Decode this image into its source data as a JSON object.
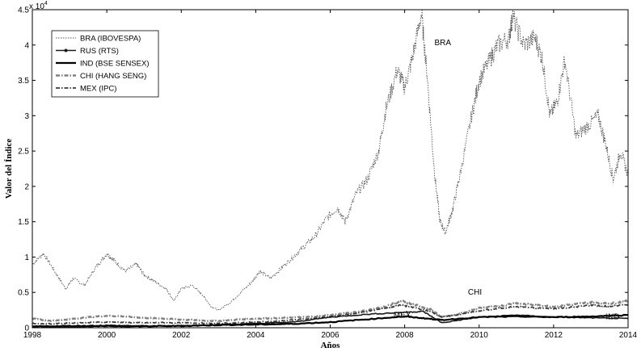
{
  "chart_data": {
    "type": "line",
    "title": "",
    "xlabel": "Años",
    "ylabel": "Valor del Índice",
    "y_exponent_label": "x 10",
    "y_exponent": "4",
    "xlim": [
      1998,
      2014
    ],
    "ylim": [
      0,
      45000
    ],
    "x_ticks": [
      1998,
      2000,
      2002,
      2004,
      2006,
      2008,
      2010,
      2012,
      2014
    ],
    "y_ticks": [
      0,
      0.5,
      1,
      1.5,
      2,
      2.5,
      3,
      3.5,
      4,
      4.5
    ],
    "grid": false,
    "legend_position": "top-left",
    "series": [
      {
        "name": "BRA (IBOVESPA)",
        "style": "dotted",
        "color": "#555555",
        "x": [
          1998.0,
          1998.3,
          1998.6,
          1998.9,
          1999.1,
          1999.4,
          1999.7,
          2000.0,
          2000.2,
          2000.5,
          2000.8,
          2001.0,
          2001.3,
          2001.6,
          2001.8,
          2002.0,
          2002.3,
          2002.6,
          2002.8,
          2003.0,
          2003.3,
          2003.6,
          2003.9,
          2004.1,
          2004.4,
          2004.7,
          2005.0,
          2005.3,
          2005.6,
          2005.9,
          2006.2,
          2006.4,
          2006.7,
          2007.0,
          2007.3,
          2007.5,
          2007.8,
          2008.0,
          2008.2,
          2008.45,
          2008.6,
          2008.8,
          2008.95,
          2009.1,
          2009.3,
          2009.5,
          2009.8,
          2010.0,
          2010.3,
          2010.5,
          2010.8,
          2010.9,
          2011.2,
          2011.5,
          2011.7,
          2011.9,
          2012.1,
          2012.3,
          2012.6,
          2012.9,
          2013.2,
          2013.4,
          2013.6,
          2013.8,
          2014.0
        ],
        "y": [
          9000,
          10500,
          8000,
          5500,
          7000,
          6000,
          8500,
          10500,
          9500,
          8000,
          9000,
          7500,
          6500,
          5500,
          3800,
          5500,
          6000,
          4500,
          3000,
          2500,
          3500,
          5000,
          6500,
          8000,
          7000,
          8500,
          10000,
          11500,
          13000,
          15500,
          17000,
          15000,
          19000,
          21000,
          25000,
          31000,
          36500,
          34000,
          38000,
          44500,
          36000,
          22000,
          15000,
          13500,
          17000,
          22000,
          30000,
          35000,
          38000,
          40000,
          41000,
          44000,
          40000,
          41000,
          38000,
          30000,
          32000,
          38000,
          27000,
          28500,
          30000,
          26000,
          21000,
          25000,
          21500
        ]
      },
      {
        "name": "RUS (RTS)",
        "style": "solid-dots",
        "color": "#1a1a1a",
        "x": [
          1998.0,
          1999.0,
          2000.0,
          2001.0,
          2002.0,
          2003.0,
          2004.0,
          2005.0,
          2006.0,
          2007.0,
          2008.0,
          2008.5,
          2009.0,
          2010.0,
          2011.0,
          2012.0,
          2013.0,
          2014.0
        ],
        "y": [
          150,
          100,
          200,
          180,
          300,
          450,
          600,
          800,
          1500,
          1900,
          2200,
          2300,
          700,
          1500,
          1800,
          1500,
          1400,
          1300
        ]
      },
      {
        "name": "IND (BSE SENSEX)",
        "style": "solid-thick",
        "color": "#000000",
        "x": [
          1998.0,
          1999.0,
          2000.0,
          2001.0,
          2002.0,
          2003.0,
          2004.0,
          2005.0,
          2006.0,
          2007.0,
          2008.0,
          2008.6,
          2009.0,
          2010.0,
          2011.0,
          2012.0,
          2013.0,
          2014.0
        ],
        "y": [
          180,
          250,
          300,
          230,
          250,
          380,
          450,
          550,
          800,
          1200,
          1600,
          1300,
          1100,
          1500,
          1600,
          1500,
          1600,
          1800
        ]
      },
      {
        "name": "CHI (HANG SENG)",
        "style": "dash-dot-gray",
        "color": "#808080",
        "x": [
          1998.0,
          1998.5,
          1999.0,
          1999.5,
          2000.0,
          2000.5,
          2001.0,
          2001.5,
          2002.0,
          2002.5,
          2003.0,
          2003.5,
          2004.0,
          2004.5,
          2005.0,
          2005.5,
          2006.0,
          2006.5,
          2007.0,
          2007.5,
          2007.9,
          2008.3,
          2008.7,
          2009.0,
          2009.5,
          2010.0,
          2010.5,
          2011.0,
          2011.5,
          2012.0,
          2012.5,
          2013.0,
          2013.5,
          2014.0
        ],
        "y": [
          1300,
          1000,
          1200,
          1500,
          1700,
          1600,
          1400,
          1300,
          1150,
          1050,
          950,
          1150,
          1300,
          1350,
          1450,
          1550,
          1800,
          2100,
          2500,
          3000,
          3800,
          3200,
          2600,
          1500,
          2000,
          2800,
          3000,
          3500,
          3200,
          3000,
          3300,
          3600,
          3400,
          3800
        ]
      },
      {
        "name": "MEX (IPC)",
        "style": "dash-dot-dark",
        "color": "#3a3a3a",
        "x": [
          1998.0,
          1998.5,
          1999.0,
          1999.5,
          2000.0,
          2000.5,
          2001.0,
          2001.5,
          2002.0,
          2002.5,
          2003.0,
          2003.5,
          2004.0,
          2004.5,
          2005.0,
          2005.5,
          2006.0,
          2006.5,
          2007.0,
          2007.5,
          2007.9,
          2008.3,
          2008.7,
          2009.0,
          2009.5,
          2010.0,
          2010.5,
          2011.0,
          2011.5,
          2012.0,
          2012.5,
          2013.0,
          2013.5,
          2014.0
        ],
        "y": [
          600,
          550,
          650,
          750,
          800,
          750,
          700,
          720,
          700,
          650,
          600,
          700,
          800,
          900,
          1100,
          1300,
          1600,
          1900,
          2300,
          2800,
          3200,
          2800,
          2300,
          1500,
          1900,
          2400,
          2700,
          3000,
          2800,
          2700,
          2900,
          3200,
          3000,
          3300
        ]
      }
    ],
    "annotations": [
      {
        "text": "BRA",
        "x": 2008.8,
        "y": 40000
      },
      {
        "text": "CHI",
        "x": 2009.7,
        "y": 4700
      },
      {
        "text": "MEX",
        "x": 2007.7,
        "y": 1400
      },
      {
        "text": "IND",
        "x": 2013.4,
        "y": 1200
      }
    ]
  }
}
